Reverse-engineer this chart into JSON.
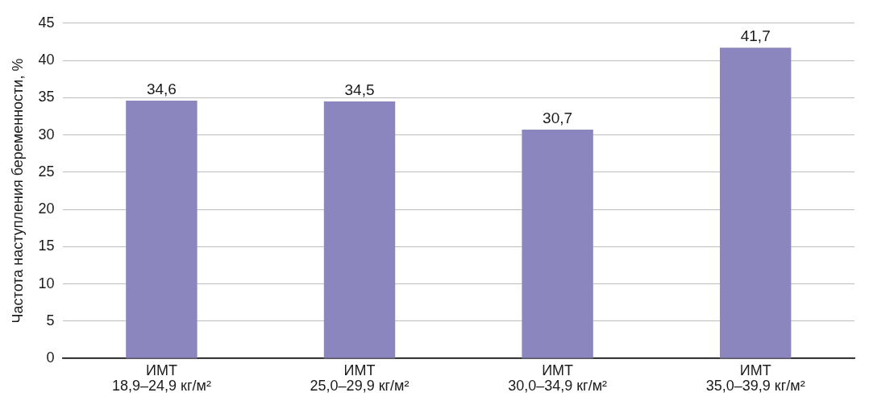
{
  "chart_data": {
    "type": "bar",
    "ylabel": "Частота наступления беременности, %",
    "categories": [
      "ИМТ\n18,9–24,9 кг/м²",
      "ИМТ\n25,0–29,9 кг/м²",
      "ИМТ\n30,0–34,9 кг/м²",
      "ИМТ\n35,0–39,9 кг/м²"
    ],
    "values": [
      34.6,
      34.5,
      30.7,
      41.7
    ],
    "color": "#8b86be",
    "ylim": [
      0,
      45
    ],
    "yticks": [
      0,
      5,
      10,
      15,
      20,
      25,
      30,
      35,
      40,
      45
    ],
    "grid": "y",
    "value_labels": [
      "34,6",
      "34,5",
      "30,7",
      "41,7"
    ]
  }
}
